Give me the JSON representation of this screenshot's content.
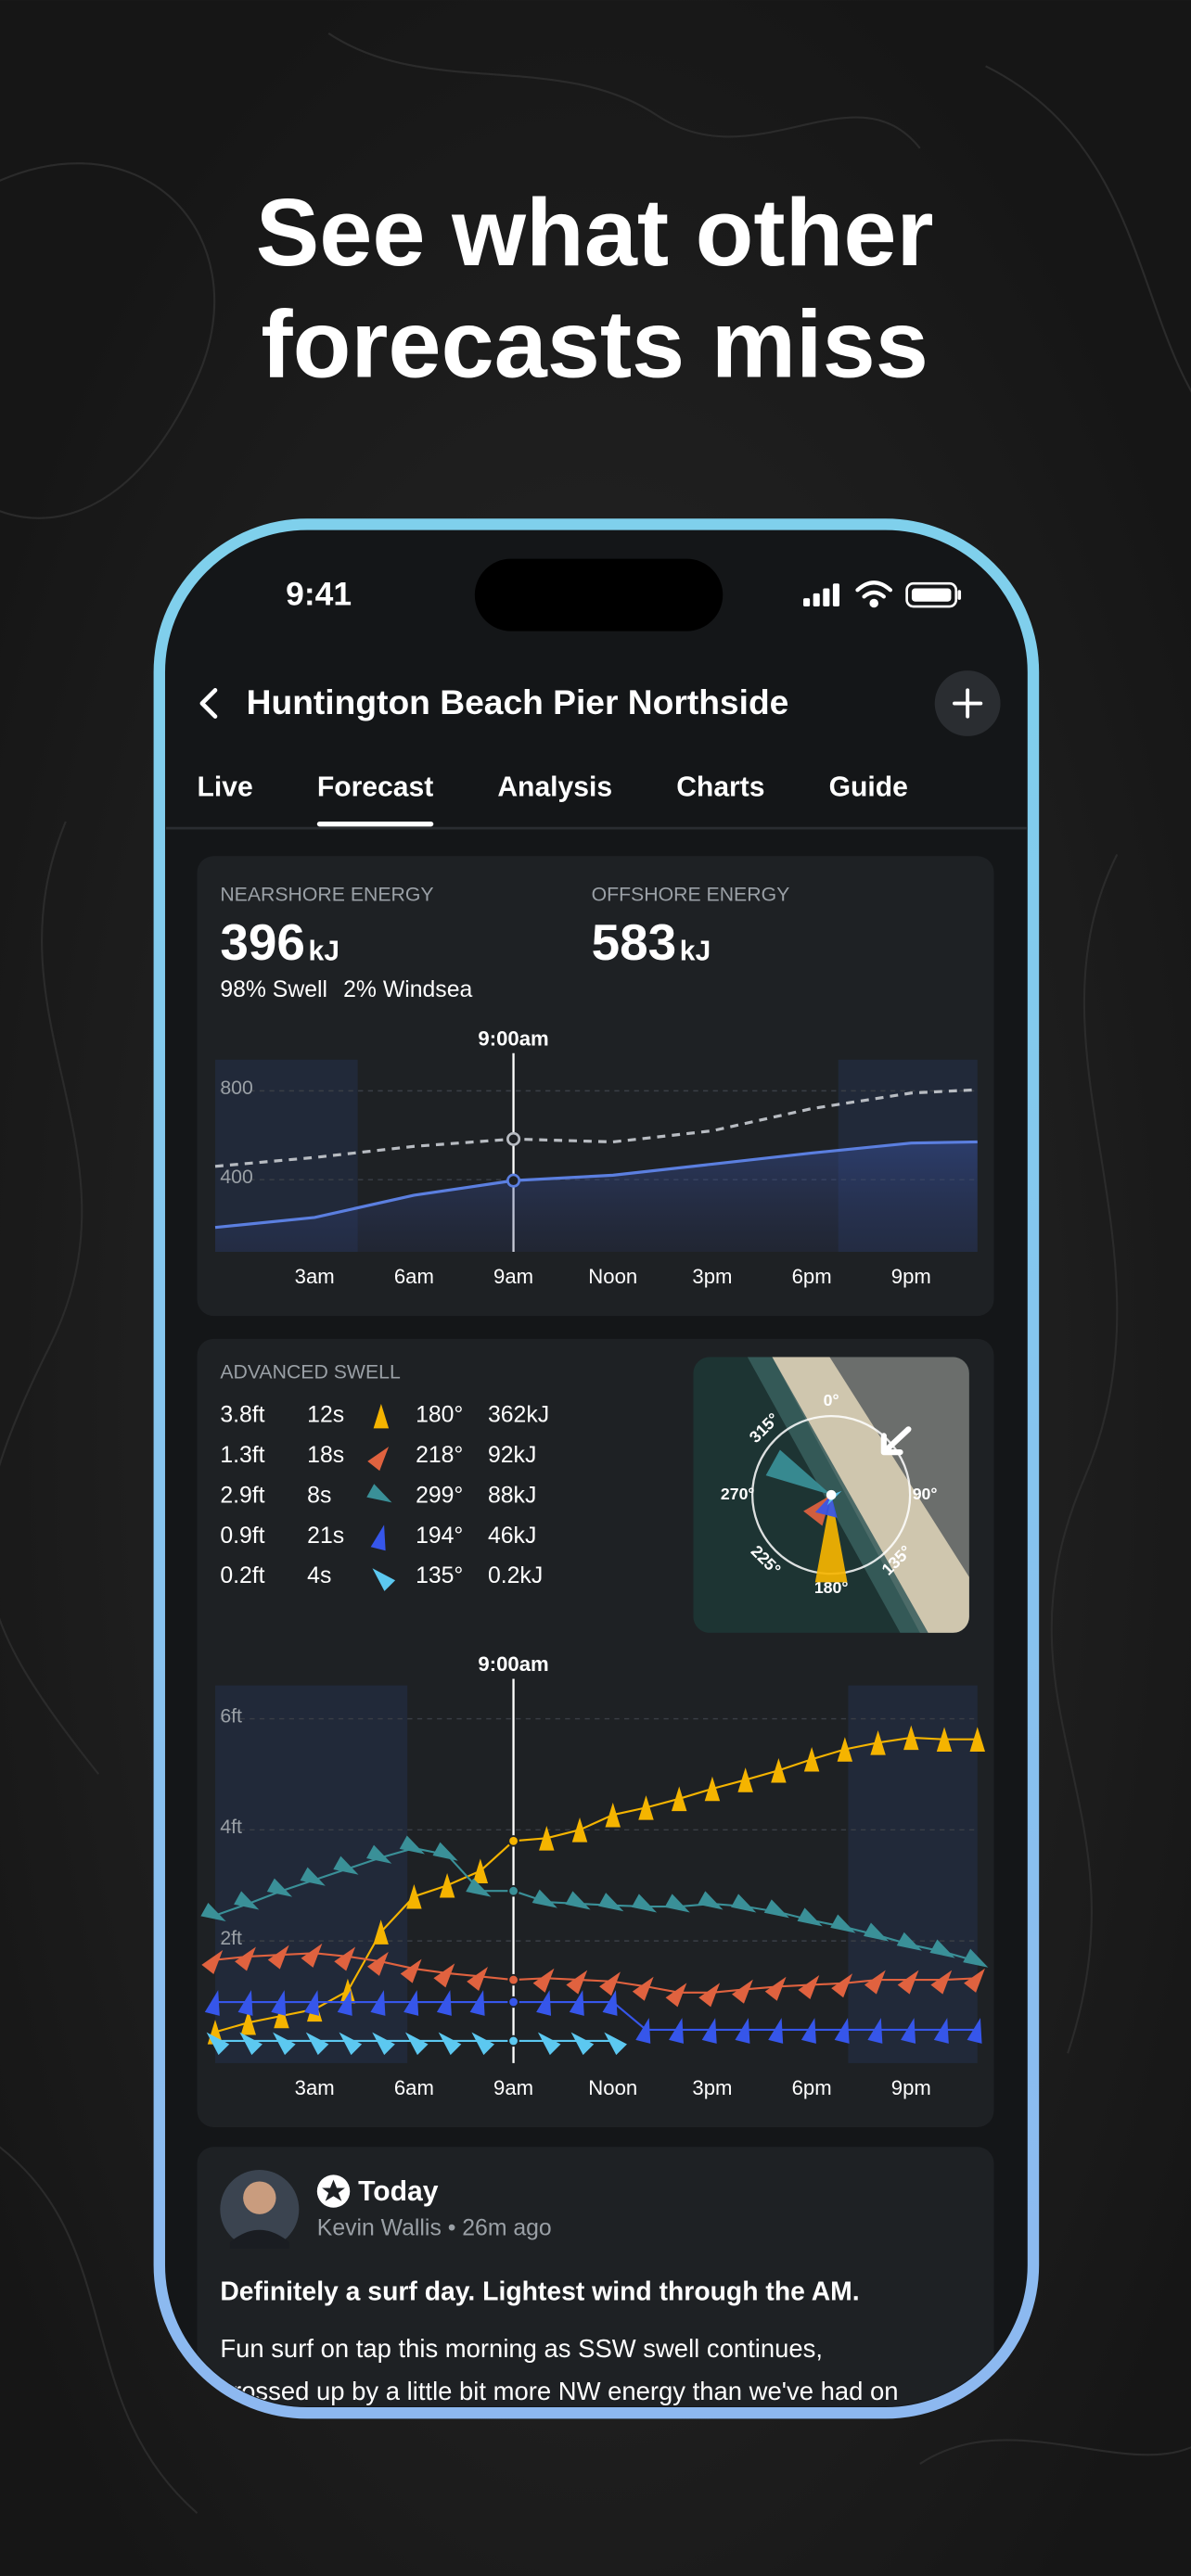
{
  "headline": {
    "lines": [
      "See what other",
      "forecasts miss"
    ]
  },
  "status": {
    "time": "9:41"
  },
  "header": {
    "title": "Huntington Beach Pier Northside"
  },
  "tabs": {
    "items": [
      "Live",
      "Forecast",
      "Analysis",
      "Charts",
      "Guide"
    ],
    "active": 1
  },
  "energy": {
    "nearshore": {
      "label": "NEARSHORE ENERGY",
      "value": 396,
      "unit": "kJ",
      "breakdown": [
        "98% Swell",
        "2% Windsea"
      ]
    },
    "offshore": {
      "label": "OFFSHORE ENERGY",
      "value": 583,
      "unit": "kJ"
    }
  },
  "energy_chart": {
    "marker": {
      "value": 9,
      "label": "9:00am"
    },
    "xlim": [
      0,
      23
    ],
    "ylim": [
      75,
      940
    ],
    "yticks": [
      400,
      800
    ],
    "xticks": [
      {
        "value": 3,
        "label": "3am"
      },
      {
        "value": 6,
        "label": "6am"
      },
      {
        "value": 9,
        "label": "9am"
      },
      {
        "value": 12,
        "label": "Noon"
      },
      {
        "value": 15,
        "label": "3pm"
      },
      {
        "value": 18,
        "label": "6pm"
      },
      {
        "value": 21,
        "label": "9pm"
      }
    ],
    "night": [
      [
        0,
        4.3
      ],
      [
        18.8,
        23
      ]
    ],
    "hours": [
      0,
      3,
      6,
      9,
      12,
      15,
      18,
      21,
      23
    ],
    "series": [
      {
        "color": "#5b7fe0",
        "style": "solid",
        "values": [
          185,
          230,
          330,
          396,
          420,
          470,
          520,
          565,
          570
        ]
      },
      {
        "color": "#b8bcc2",
        "style": "dashed",
        "values": [
          460,
          500,
          550,
          583,
          570,
          620,
          720,
          790,
          805
        ]
      }
    ]
  },
  "swell": {
    "label": "ADVANCED SWELL",
    "rows": [
      {
        "height": {
          "value": 3.8,
          "label": "3.8ft"
        },
        "period": "12s",
        "direction": {
          "value": 180,
          "label": "180°"
        },
        "energy": "362kJ",
        "color": "#f5b400"
      },
      {
        "height": {
          "value": 1.3,
          "label": "1.3ft"
        },
        "period": "18s",
        "direction": {
          "value": 218,
          "label": "218°"
        },
        "energy": "92kJ",
        "color": "#e0623f"
      },
      {
        "height": {
          "value": 2.9,
          "label": "2.9ft"
        },
        "period": "8s",
        "direction": {
          "value": 299,
          "label": "299°"
        },
        "energy": "88kJ",
        "color": "#3a9098"
      },
      {
        "height": {
          "value": 0.9,
          "label": "0.9ft"
        },
        "period": "21s",
        "direction": {
          "value": 194,
          "label": "194°"
        },
        "energy": "46kJ",
        "color": "#3656ea"
      },
      {
        "height": {
          "value": 0.2,
          "label": "0.2ft"
        },
        "period": "4s",
        "direction": {
          "value": 135,
          "label": "135°"
        },
        "energy": "0.2kJ",
        "color": "#5cc8f0"
      }
    ],
    "compass_labels": [
      {
        "value": 0,
        "label": "0°"
      },
      {
        "value": 90,
        "label": "90°"
      },
      {
        "value": 180,
        "label": "180°"
      },
      {
        "value": 270,
        "label": "270°"
      },
      {
        "value": 315,
        "label": "315°"
      },
      {
        "value": 135,
        "label": "135°"
      },
      {
        "value": 225,
        "label": "225°"
      }
    ]
  },
  "swell_chart": {
    "marker": {
      "value": 9,
      "label": "9:00am"
    },
    "xlim": [
      0,
      23
    ],
    "ylim": [
      -0.2,
      6.6
    ],
    "yticks": [
      {
        "value": 2,
        "label": "2ft"
      },
      {
        "value": 4,
        "label": "4ft"
      },
      {
        "value": 6,
        "label": "6ft"
      }
    ],
    "xticks": [
      {
        "value": 3,
        "label": "3am"
      },
      {
        "value": 6,
        "label": "6am"
      },
      {
        "value": 9,
        "label": "9am"
      },
      {
        "value": 12,
        "label": "Noon"
      },
      {
        "value": 15,
        "label": "3pm"
      },
      {
        "value": 18,
        "label": "6pm"
      },
      {
        "value": 21,
        "label": "9pm"
      }
    ],
    "night": [
      [
        0,
        5.8
      ],
      [
        19.1,
        23
      ]
    ],
    "hours": [
      0,
      1,
      2,
      3,
      4,
      5,
      6,
      7,
      8,
      9,
      10,
      11,
      12,
      13,
      14,
      15,
      16,
      17,
      18,
      19,
      20,
      21,
      22,
      23
    ],
    "series": [
      {
        "color": "#f5b400",
        "values": [
          0.36,
          0.53,
          0.65,
          0.77,
          1.1,
          2.16,
          2.8,
          3.0,
          3.26,
          3.8,
          3.85,
          4.0,
          4.27,
          4.4,
          4.56,
          4.74,
          4.9,
          5.07,
          5.27,
          5.45,
          5.57,
          5.66,
          5.63,
          5.63
        ]
      },
      {
        "color": "#e0623f",
        "values": [
          1.66,
          1.72,
          1.75,
          1.78,
          1.72,
          1.63,
          1.5,
          1.42,
          1.36,
          1.3,
          1.33,
          1.3,
          1.27,
          1.18,
          1.07,
          1.07,
          1.13,
          1.18,
          1.21,
          1.24,
          1.3,
          1.3,
          1.3,
          1.33
        ]
      },
      {
        "color": "#3a9098",
        "values": [
          2.46,
          2.67,
          2.9,
          3.1,
          3.3,
          3.5,
          3.67,
          3.55,
          2.9,
          2.9,
          2.7,
          2.67,
          2.64,
          2.62,
          2.62,
          2.67,
          2.62,
          2.52,
          2.37,
          2.25,
          2.1,
          1.93,
          1.8,
          1.63
        ]
      },
      {
        "color": "#3656ea",
        "values": [
          0.9,
          0.9,
          0.9,
          0.9,
          0.9,
          0.9,
          0.9,
          0.9,
          0.9,
          0.9,
          0.9,
          0.9,
          0.9,
          0.4,
          0.4,
          0.4,
          0.4,
          0.4,
          0.4,
          0.4,
          0.4,
          0.4,
          0.4,
          0.4
        ]
      },
      {
        "color": "#5cc8f0",
        "values": [
          0.2,
          0.2,
          0.2,
          0.2,
          0.2,
          0.2,
          0.2,
          0.2,
          0.2,
          0.2,
          0.2,
          0.2,
          0.2,
          null,
          null,
          null,
          null,
          null,
          null,
          null,
          null,
          null,
          null,
          null
        ]
      }
    ]
  },
  "post": {
    "title": "Today",
    "meta": "Kevin Wallis • 26m ago",
    "headline": "Definitely a surf day. Lightest wind through the AM.",
    "body": [
      "Fun surf on tap this morning as SSW swell continues,",
      "crossed up by a little bit more NW energy than we've had on"
    ]
  }
}
